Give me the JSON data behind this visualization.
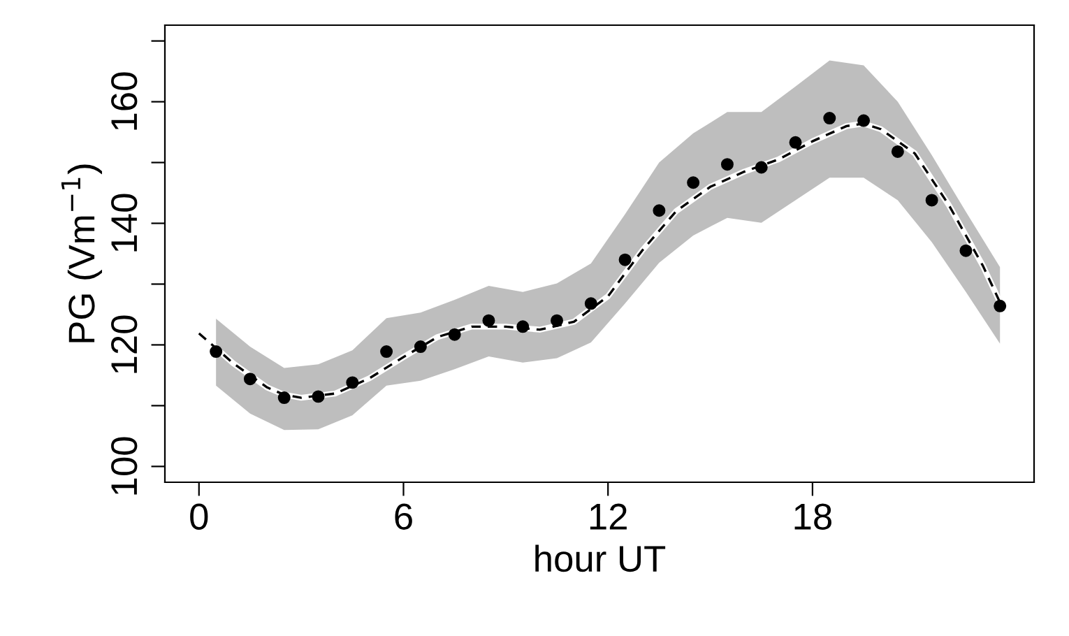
{
  "chart_data": {
    "type": "scatter",
    "xlabel": "hour UT",
    "ylabel": "PG (Vm$^{−1}$)",
    "xlim": [
      -1,
      24.5
    ],
    "ylim": [
      97.4,
      172.6
    ],
    "xticks": [
      0,
      6,
      12,
      18
    ],
    "yticks": [
      100,
      {
        "value": 110,
        "label": null
      },
      120,
      {
        "value": 130,
        "label": null
      },
      140,
      {
        "value": 150,
        "label": null
      },
      160,
      {
        "value": 170,
        "label": null
      }
    ],
    "grid": false,
    "legend": false,
    "series": [
      {
        "color": "#000000",
        "marker": "circle",
        "x": [
          0.5,
          1.5,
          2.5,
          3.5,
          4.5,
          5.5,
          6.5,
          7.5,
          8.5,
          9.5,
          10.5,
          11.5,
          12.5,
          13.5,
          14.5,
          15.5,
          16.5,
          17.5,
          18.5,
          19.5,
          20.5,
          21.5,
          22.5,
          23.5
        ],
        "values": [
          118.9,
          114.4,
          111.3,
          111.5,
          113.8,
          118.9,
          119.7,
          121.7,
          124.0,
          123.0,
          124.0,
          126.8,
          134.0,
          142.1,
          146.7,
          149.7,
          149.2,
          153.3,
          157.3,
          156.9,
          151.8,
          143.8,
          135.5,
          126.4
        ],
        "upper": [
          124.3,
          119.7,
          116.2,
          116.8,
          119.1,
          124.4,
          125.3,
          127.4,
          129.7,
          128.7,
          130.1,
          133.4,
          141.5,
          150.0,
          154.8,
          158.3,
          158.3,
          162.5,
          166.8,
          166.0,
          160.0,
          151.2,
          141.9,
          132.8
        ],
        "lower": [
          113.3,
          108.7,
          106.0,
          106.1,
          108.4,
          113.3,
          114.1,
          116.0,
          118.1,
          117.1,
          117.8,
          120.4,
          126.8,
          133.5,
          138.0,
          140.9,
          140.1,
          143.8,
          147.5,
          147.5,
          143.8,
          136.9,
          128.7,
          120.2
        ]
      },
      {
        "type": "line",
        "color": "#000000",
        "line_style": "dashed",
        "marker": "none",
        "x": [
          0,
          1,
          2,
          2.5,
          3,
          4,
          5,
          6,
          7,
          8,
          9,
          10,
          11,
          12,
          13,
          14,
          15,
          16,
          17,
          18,
          19,
          19.5,
          20,
          21,
          22,
          23,
          23.5
        ],
        "values": [
          121.9,
          117.0,
          113.0,
          111.8,
          111.3,
          112.0,
          114.5,
          118.0,
          121.3,
          123.0,
          123.0,
          122.5,
          123.8,
          128.0,
          135.5,
          142.0,
          146.0,
          148.5,
          150.5,
          153.5,
          156.0,
          156.4,
          155.5,
          151.5,
          143.0,
          133.0,
          127.0
        ]
      }
    ]
  }
}
